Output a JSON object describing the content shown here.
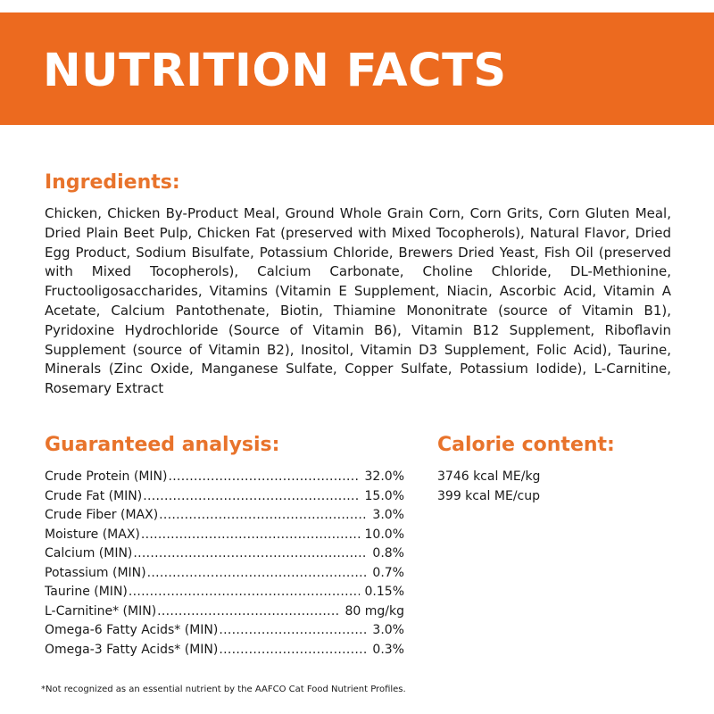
{
  "banner": {
    "title": "NUTRITION FACTS",
    "color": "#ec6a1f"
  },
  "ingredients": {
    "heading": "Ingredients:",
    "text": "Chicken, Chicken By-Product Meal, Ground Whole Grain Corn, Corn Grits, Corn Gluten Meal, Dried Plain Beet Pulp, Chicken Fat (preserved with Mixed Tocopherols), Natural Flavor, Dried Egg Product, Sodium Bisulfate, Potassium Chloride, Brewers Dried Yeast, Fish Oil (preserved with Mixed Tocopherols), Calcium Carbonate, Choline Chloride, DL-Methionine, Fructooligosaccharides, Vitamins (Vitamin E Supplement, Niacin, Ascorbic Acid, Vitamin A Acetate, Calcium Pantothenate, Biotin, Thiamine Mononitrate (source of Vitamin B1), Pyridoxine Hydrochloride (Source of Vitamin B6), Vitamin B12 Supplement, Riboflavin Supplement (source of Vitamin B2), Inositol, Vitamin D3 Supplement, Folic Acid), Taurine, Minerals (Zinc Oxide, Manganese Sulfate, Copper Sulfate, Potassium Iodide), L-Carnitine, Rosemary Extract"
  },
  "analysis": {
    "heading": "Guaranteed analysis:",
    "rows": [
      {
        "name": "Crude Protein (MIN)",
        "value": "32.0%"
      },
      {
        "name": "Crude Fat (MIN)",
        "value": "15.0%"
      },
      {
        "name": "Crude Fiber (MAX)",
        "value": "3.0%"
      },
      {
        "name": "Moisture (MAX)",
        "value": "10.0%"
      },
      {
        "name": "Calcium (MIN)",
        "value": "0.8%"
      },
      {
        "name": "Potassium (MIN)",
        "value": "0.7%"
      },
      {
        "name": "Taurine (MIN)",
        "value": "0.15%"
      },
      {
        "name": "L-Carnitine*  (MIN)",
        "value": "80 mg/kg"
      },
      {
        "name": "Omega-6 Fatty Acids*  (MIN)",
        "value": "3.0%"
      },
      {
        "name": "Omega-3 Fatty Acids*  (MIN)",
        "value": "0.3%"
      }
    ]
  },
  "calorie": {
    "heading": "Calorie content:",
    "lines": [
      "3746 kcal ME/kg",
      "399 kcal ME/cup"
    ]
  },
  "footnote": "*Not recognized as an essential nutrient by the AAFCO Cat Food Nutrient Profiles.",
  "colors": {
    "accent": "#e8732b",
    "text": "#1a1a1a",
    "background": "#ffffff"
  }
}
